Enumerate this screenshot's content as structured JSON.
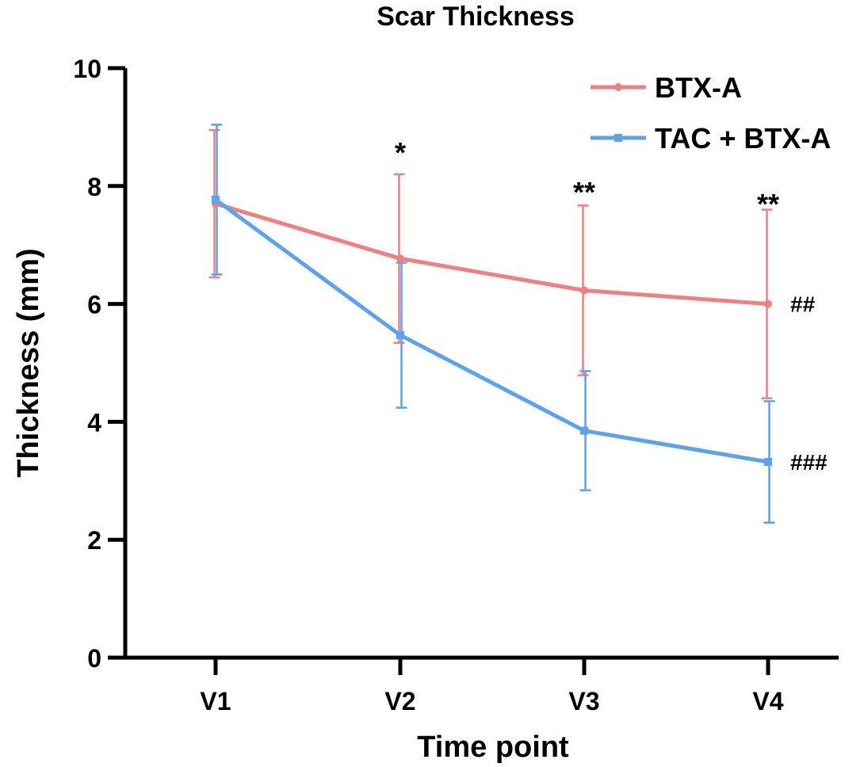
{
  "chart_data": {
    "type": "line",
    "title": "Scar Thickness",
    "xlabel": "Time point",
    "ylabel": "Thickness (mm)",
    "categories": [
      "V1",
      "V2",
      "V3",
      "V4"
    ],
    "ylim": [
      0,
      10
    ],
    "yticks": [
      "0",
      "2",
      "4",
      "6",
      "8",
      "10"
    ],
    "grid": false,
    "legend_position": "top-right",
    "series": [
      {
        "name": "BTX-A",
        "color": "#F08080",
        "marker": "circle",
        "values": [
          7.7,
          6.77,
          6.23,
          6.0
        ],
        "error": [
          1.25,
          1.43,
          1.44,
          1.6
        ]
      },
      {
        "name": "TAC + BTX-A",
        "color": "#5BA3EE",
        "marker": "square",
        "values": [
          7.77,
          5.47,
          3.85,
          3.32
        ],
        "error": [
          1.27,
          1.23,
          1.01,
          1.03
        ]
      }
    ],
    "significance_marks": [
      "",
      "*",
      "**",
      "**"
    ],
    "series_end_marks": [
      "##",
      "###"
    ]
  }
}
